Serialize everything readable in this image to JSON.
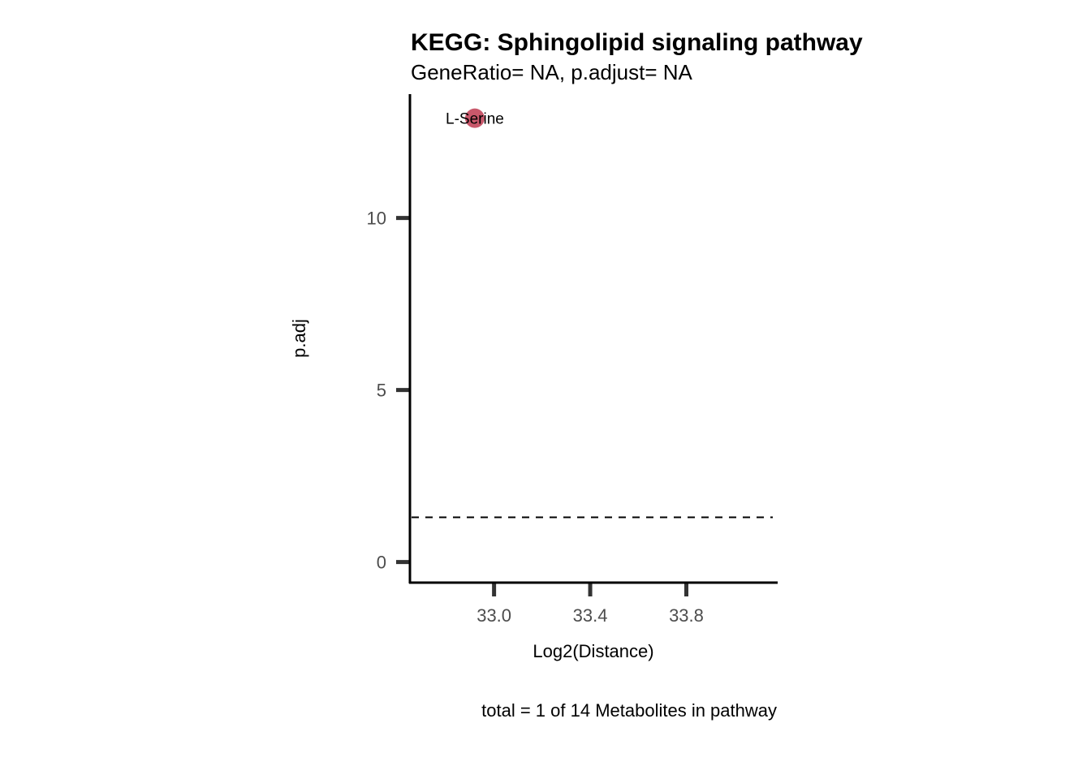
{
  "chart_data": {
    "type": "scatter",
    "title": "KEGG: Sphingolipid signaling pathway",
    "subtitle": "GeneRatio= NA, p.adjust= NA",
    "xlabel": "Log2(Distance)",
    "ylabel": "p.adj",
    "caption": "total = 1 of 14 Metabolites in pathway",
    "x_ticks": [
      33.0,
      33.4,
      33.8
    ],
    "x_tick_labels": [
      "33.0",
      "33.4",
      "33.8"
    ],
    "y_ticks": [
      0,
      5,
      10
    ],
    "y_tick_labels": [
      "0",
      "5",
      "10"
    ],
    "xlim": [
      32.65,
      34.18
    ],
    "ylim": [
      -0.6,
      13.6
    ],
    "threshold_line": {
      "y": 1.3,
      "style": "dashed"
    },
    "points": [
      {
        "x": 32.92,
        "y": 12.9,
        "label": "L-Serine",
        "color": "#c8586b"
      }
    ],
    "grid": false
  }
}
